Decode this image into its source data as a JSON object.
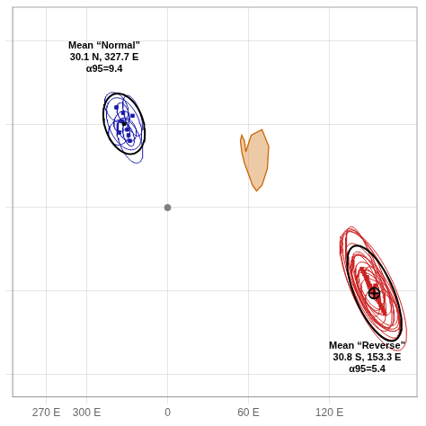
{
  "chart_data": {
    "type": "scatter",
    "xlim": [
      -115,
      185
    ],
    "ylim": [
      -68,
      72
    ],
    "xticks": [
      {
        "value": -90,
        "label": "270 E"
      },
      {
        "value": -60,
        "label": "300 E"
      },
      0,
      {
        "value": 60,
        "label": "60 E"
      },
      {
        "value": 120,
        "label": "120 E"
      }
    ],
    "yticks": [
      -60,
      -30,
      0,
      30,
      60
    ],
    "tick_labels": "x",
    "grid": true,
    "annotations": [
      {
        "text": "Mean “Normal”\n30.1 N, 327.7 E\nα95=9.4",
        "x": -47,
        "y": 60
      },
      {
        "text": "Mean “Reverse”\n30.8 S, 153.3 E\nα95=5.4",
        "x": 148,
        "y": -48
      }
    ],
    "series": [
      {
        "type": "polygon",
        "color": "#cc6600",
        "x": [
          58,
          62,
          70,
          75,
          74,
          70,
          66,
          63,
          60,
          57,
          55,
          54,
          55,
          57,
          58
        ],
        "values": [
          20,
          26,
          28,
          22,
          14,
          8,
          6,
          8,
          12,
          16,
          20,
          24,
          26,
          24,
          20
        ]
      },
      {
        "type": "ellipse",
        "color": "#1a1aaa",
        "x": [
          -32.3,
          -38,
          -28,
          -36,
          -26,
          -34,
          -30,
          -33,
          -29
        ],
        "values": [
          30.1,
          36,
          24,
          27,
          33,
          31,
          28,
          34,
          26
        ],
        "width": [
          28,
          18,
          22,
          16,
          18,
          12,
          14,
          10,
          10
        ],
        "height": [
          16,
          10,
          12,
          9,
          10,
          7,
          8,
          6,
          6
        ],
        "angle": [
          -25,
          -15,
          -35,
          5,
          -45,
          15,
          -15,
          -30,
          -40
        ]
      },
      {
        "type": "ellipse",
        "color": "#000000",
        "x": [
          -32.3
        ],
        "values": [
          30.1
        ],
        "width": [
          32
        ],
        "height": [
          20
        ],
        "angle": [
          -20
        ]
      },
      {
        "type": "scatter",
        "marker": "square",
        "color": "#1a1aaa",
        "x": [
          -38,
          -28,
          -36,
          -26,
          -34,
          -30,
          -33,
          -29
        ],
        "values": [
          36,
          24,
          27,
          33,
          31,
          28,
          34,
          26
        ]
      },
      {
        "type": "scatter",
        "marker": "square",
        "color": "#000000",
        "x": [
          -32.3
        ],
        "values": [
          30.1
        ]
      },
      {
        "type": "ellipse",
        "color": "#cc2222",
        "x": [
          150,
          155,
          148,
          152,
          156,
          149,
          153,
          151,
          154,
          147,
          158,
          145,
          160,
          153,
          150,
          155,
          148
        ],
        "values": [
          -28,
          -32,
          -26,
          -30,
          -33,
          -27,
          -31,
          -29,
          -28,
          -25,
          -35,
          -23,
          -37,
          -30,
          -28,
          -31,
          -27
        ],
        "width": [
          55,
          45,
          48,
          38,
          35,
          30,
          28,
          22,
          18,
          42,
          32,
          38,
          28,
          60,
          44,
          36,
          26
        ],
        "height": [
          22,
          18,
          20,
          16,
          14,
          13,
          11,
          10,
          9,
          17,
          13,
          15,
          12,
          24,
          17,
          14,
          11
        ],
        "angle": [
          -40,
          -35,
          -45,
          -38,
          -30,
          -42,
          -25,
          -35,
          -40,
          -50,
          -28,
          -55,
          -20,
          -40,
          -38,
          -33,
          -45
        ]
      },
      {
        "type": "ellipse",
        "color": "#000000",
        "x": [
          153.3
        ],
        "values": [
          -30.8
        ],
        "width": [
          48
        ],
        "height": [
          22
        ],
        "angle": [
          -38
        ]
      },
      {
        "type": "scatter",
        "marker": "square",
        "color": "#cc2222",
        "x": [
          150,
          155,
          148,
          152,
          156,
          149,
          153,
          151,
          154,
          147,
          158,
          145,
          160,
          153,
          150,
          157,
          146,
          152,
          155,
          159,
          144,
          161,
          148,
          154
        ],
        "values": [
          -28,
          -32,
          -26,
          -30,
          -33,
          -27,
          -31,
          -29,
          -28,
          -25,
          -35,
          -23,
          -37,
          -30,
          -28,
          -34,
          -24,
          -29,
          -31,
          -36,
          -22,
          -38,
          -25,
          -32
        ]
      },
      {
        "type": "scatter",
        "marker": "open_circle",
        "color": "#000000",
        "x": [
          153.3
        ],
        "values": [
          -30.8
        ]
      },
      {
        "type": "scatter",
        "marker": "cross",
        "color": "#000000",
        "x": [
          153.3
        ],
        "values": [
          -30.8
        ]
      },
      {
        "type": "scatter",
        "marker": "circle",
        "color": "#808080",
        "x": [
          0
        ],
        "values": [
          0
        ]
      }
    ]
  }
}
